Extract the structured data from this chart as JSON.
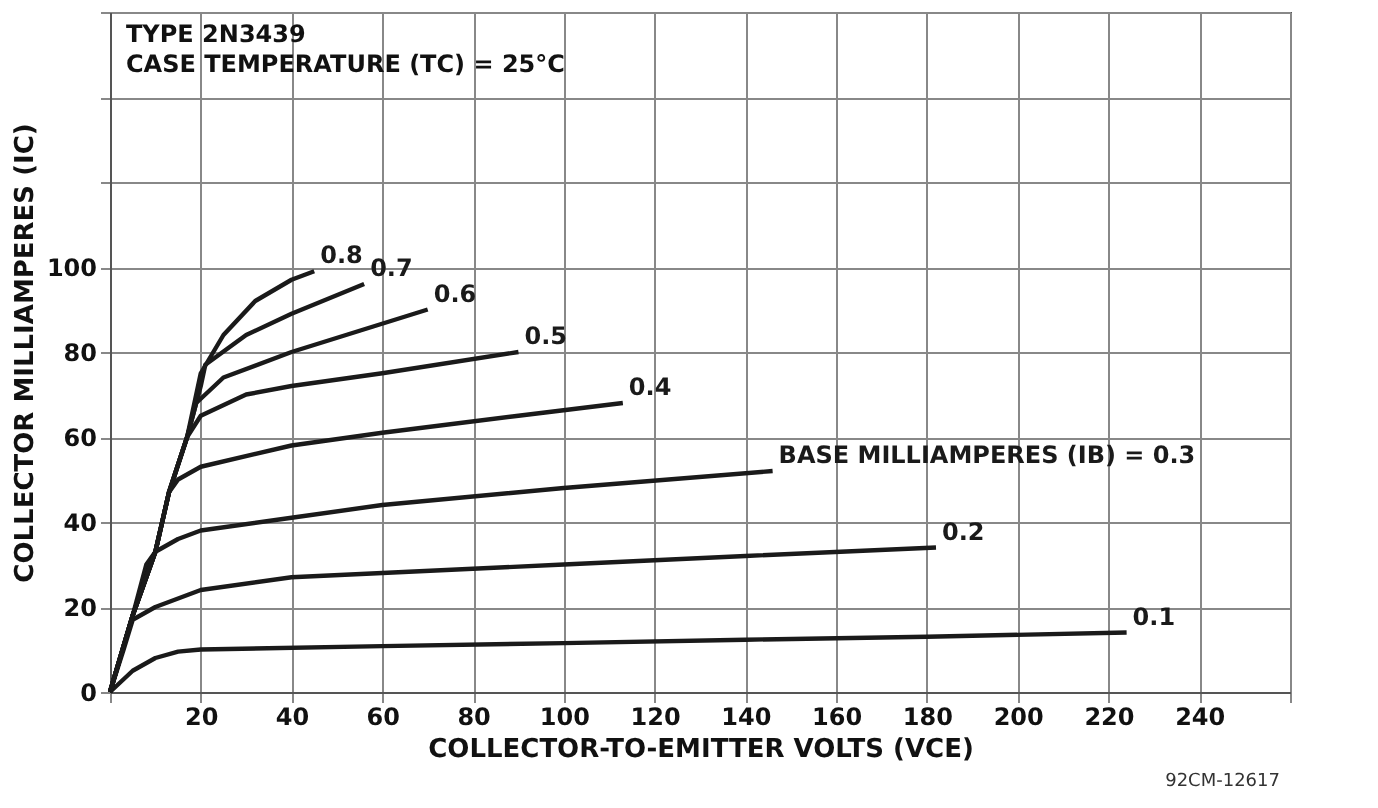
{
  "chart_data": {
    "type": "line",
    "title": "TYPE 2N3439",
    "subtitle": "CASE TEMPERATURE (TC) = 25°C",
    "xlabel": "COLLECTOR-TO-EMITTER VOLTS (VCE)",
    "ylabel": "COLLECTOR MILLIAMPERES (IC)",
    "xlim": [
      0,
      260
    ],
    "xticks": [
      {
        "value": 0,
        "label": null
      },
      20,
      40,
      60,
      80,
      100,
      120,
      140,
      160,
      180,
      200,
      220,
      240,
      {
        "value": 260,
        "label": null
      }
    ],
    "ylim": [
      0,
      160
    ],
    "yticks": [
      0,
      20,
      40,
      60,
      80,
      100,
      {
        "value": 120,
        "label": null
      },
      {
        "value": 140,
        "label": null
      },
      {
        "value": 160,
        "label": null
      }
    ],
    "grid": true,
    "legend": false,
    "marker": "none",
    "line_style": "solid",
    "annotations": [
      "92CM-12617"
    ],
    "series": [
      {
        "name": "0.1",
        "color": "#1a1a1a",
        "x": [
          0,
          5,
          10,
          15,
          20,
          60,
          100,
          140,
          180,
          224
        ],
        "values": [
          0,
          5,
          8,
          9.5,
          10,
          10.8,
          11.5,
          12.3,
          13,
          14
        ]
      },
      {
        "name": "0.2",
        "color": "#1a1a1a",
        "x": [
          0,
          3,
          5,
          10,
          20,
          40,
          60,
          100,
          140,
          182
        ],
        "values": [
          0,
          10,
          17,
          20,
          24,
          27,
          28,
          30,
          32,
          34
        ]
      },
      {
        "name": "BASE MILLIAMPERES (IB) = 0.3",
        "color": "#1a1a1a",
        "x": [
          0,
          5,
          8,
          10,
          15,
          20,
          40,
          60,
          100,
          146
        ],
        "values": [
          0,
          18,
          30,
          33,
          36,
          38,
          41,
          44,
          48,
          52
        ]
      },
      {
        "name": "0.4",
        "color": "#1a1a1a",
        "x": [
          0,
          5,
          10,
          13,
          15,
          20,
          40,
          60,
          90,
          113
        ],
        "values": [
          0,
          18,
          33,
          47,
          50,
          53,
          58,
          61,
          65,
          68
        ]
      },
      {
        "name": "0.5",
        "color": "#1a1a1a",
        "x": [
          0,
          5,
          10,
          13,
          17,
          20,
          30,
          40,
          60,
          90
        ],
        "values": [
          0,
          18,
          33,
          47,
          60,
          65,
          70,
          72,
          75,
          80
        ]
      },
      {
        "name": "0.6",
        "color": "#1a1a1a",
        "x": [
          0,
          5,
          10,
          13,
          17,
          19,
          25,
          40,
          55,
          70
        ],
        "values": [
          0,
          18,
          33,
          47,
          60,
          68,
          74,
          80,
          85,
          90
        ]
      },
      {
        "name": "0.7",
        "color": "#1a1a1a",
        "x": [
          0,
          5,
          10,
          13,
          17,
          20,
          21,
          30,
          40,
          56
        ],
        "values": [
          0,
          18,
          33,
          47,
          60,
          72,
          77,
          84,
          89,
          96
        ]
      },
      {
        "name": "0.8",
        "color": "#1a1a1a",
        "x": [
          0,
          5,
          10,
          13,
          17,
          20,
          25,
          32,
          40,
          45
        ],
        "values": [
          0,
          18,
          33,
          47,
          60,
          75,
          84,
          92,
          97,
          99
        ]
      }
    ]
  }
}
